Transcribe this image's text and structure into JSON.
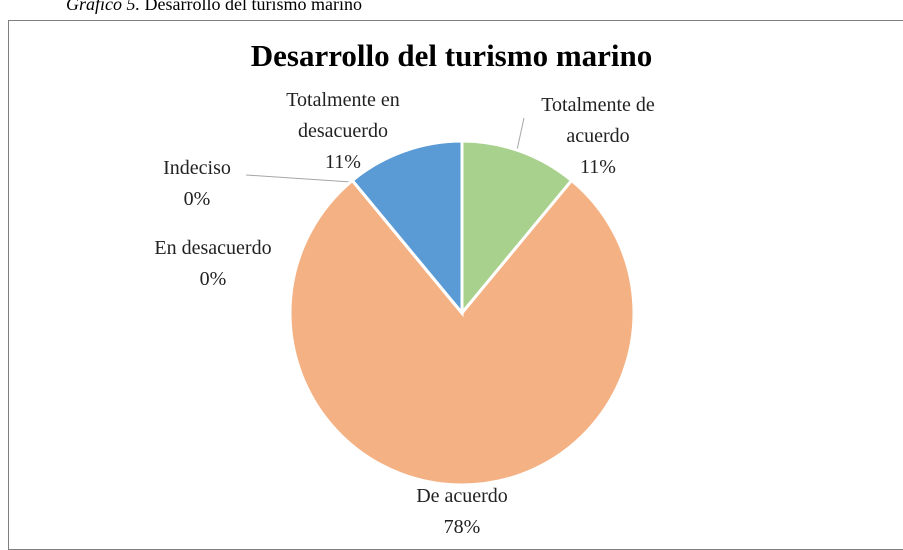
{
  "caption_label": "Gráfico 5.",
  "caption_text": "Desarrollo del turismo marino",
  "chart_data": {
    "type": "pie",
    "title": "Desarrollo del turismo marino",
    "categories": [
      "Totalmente de acuerdo",
      "De acuerdo",
      "En desacuerdo",
      "Indeciso",
      "Totalmente en desacuerdo"
    ],
    "values": [
      11,
      78,
      0,
      0,
      11
    ],
    "value_labels": [
      "11%",
      "78%",
      "0%",
      "0%",
      "11%"
    ],
    "colors": [
      "#a9d18e",
      "#f4b183",
      "#a5a5a5",
      "#ffd966",
      "#5b9bd5"
    ]
  }
}
